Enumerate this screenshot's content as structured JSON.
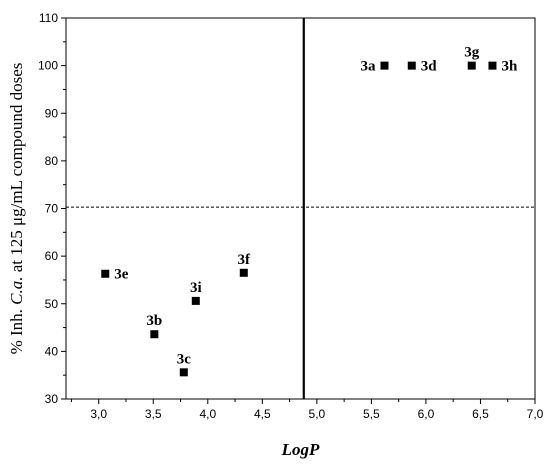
{
  "chart_data": {
    "type": "scatter",
    "xlabel": "LogP",
    "ylabel_parts": [
      "% Inh. ",
      "C.a.",
      " at 125 μg/mL compound doses"
    ],
    "xlim": [
      2.7,
      7.0
    ],
    "ylim": [
      30,
      110
    ],
    "x_ticks": [
      "3,0",
      "3,5",
      "4,0",
      "4,5",
      "5,0",
      "5,5",
      "6,0",
      "6,5",
      "7,0"
    ],
    "y_ticks": [
      "30",
      "40",
      "50",
      "60",
      "70",
      "80",
      "90",
      "100",
      "110"
    ],
    "threshold_x": 4.88,
    "threshold_y": 70.3,
    "grid": false,
    "points": [
      {
        "label": "3a",
        "x": 5.62,
        "y": 100,
        "label_pos": "left"
      },
      {
        "label": "3b",
        "x": 3.51,
        "y": 43.6,
        "label_pos": "above"
      },
      {
        "label": "3c",
        "x": 3.78,
        "y": 35.6,
        "label_pos": "above"
      },
      {
        "label": "3d",
        "x": 5.87,
        "y": 100,
        "label_pos": "right"
      },
      {
        "label": "3e",
        "x": 3.06,
        "y": 56.3,
        "label_pos": "right"
      },
      {
        "label": "3f",
        "x": 4.33,
        "y": 56.5,
        "label_pos": "above"
      },
      {
        "label": "3g",
        "x": 6.42,
        "y": 100,
        "label_pos": "above"
      },
      {
        "label": "3h",
        "x": 6.61,
        "y": 100,
        "label_pos": "right"
      },
      {
        "label": "3i",
        "x": 3.89,
        "y": 50.6,
        "label_pos": "above"
      }
    ]
  }
}
